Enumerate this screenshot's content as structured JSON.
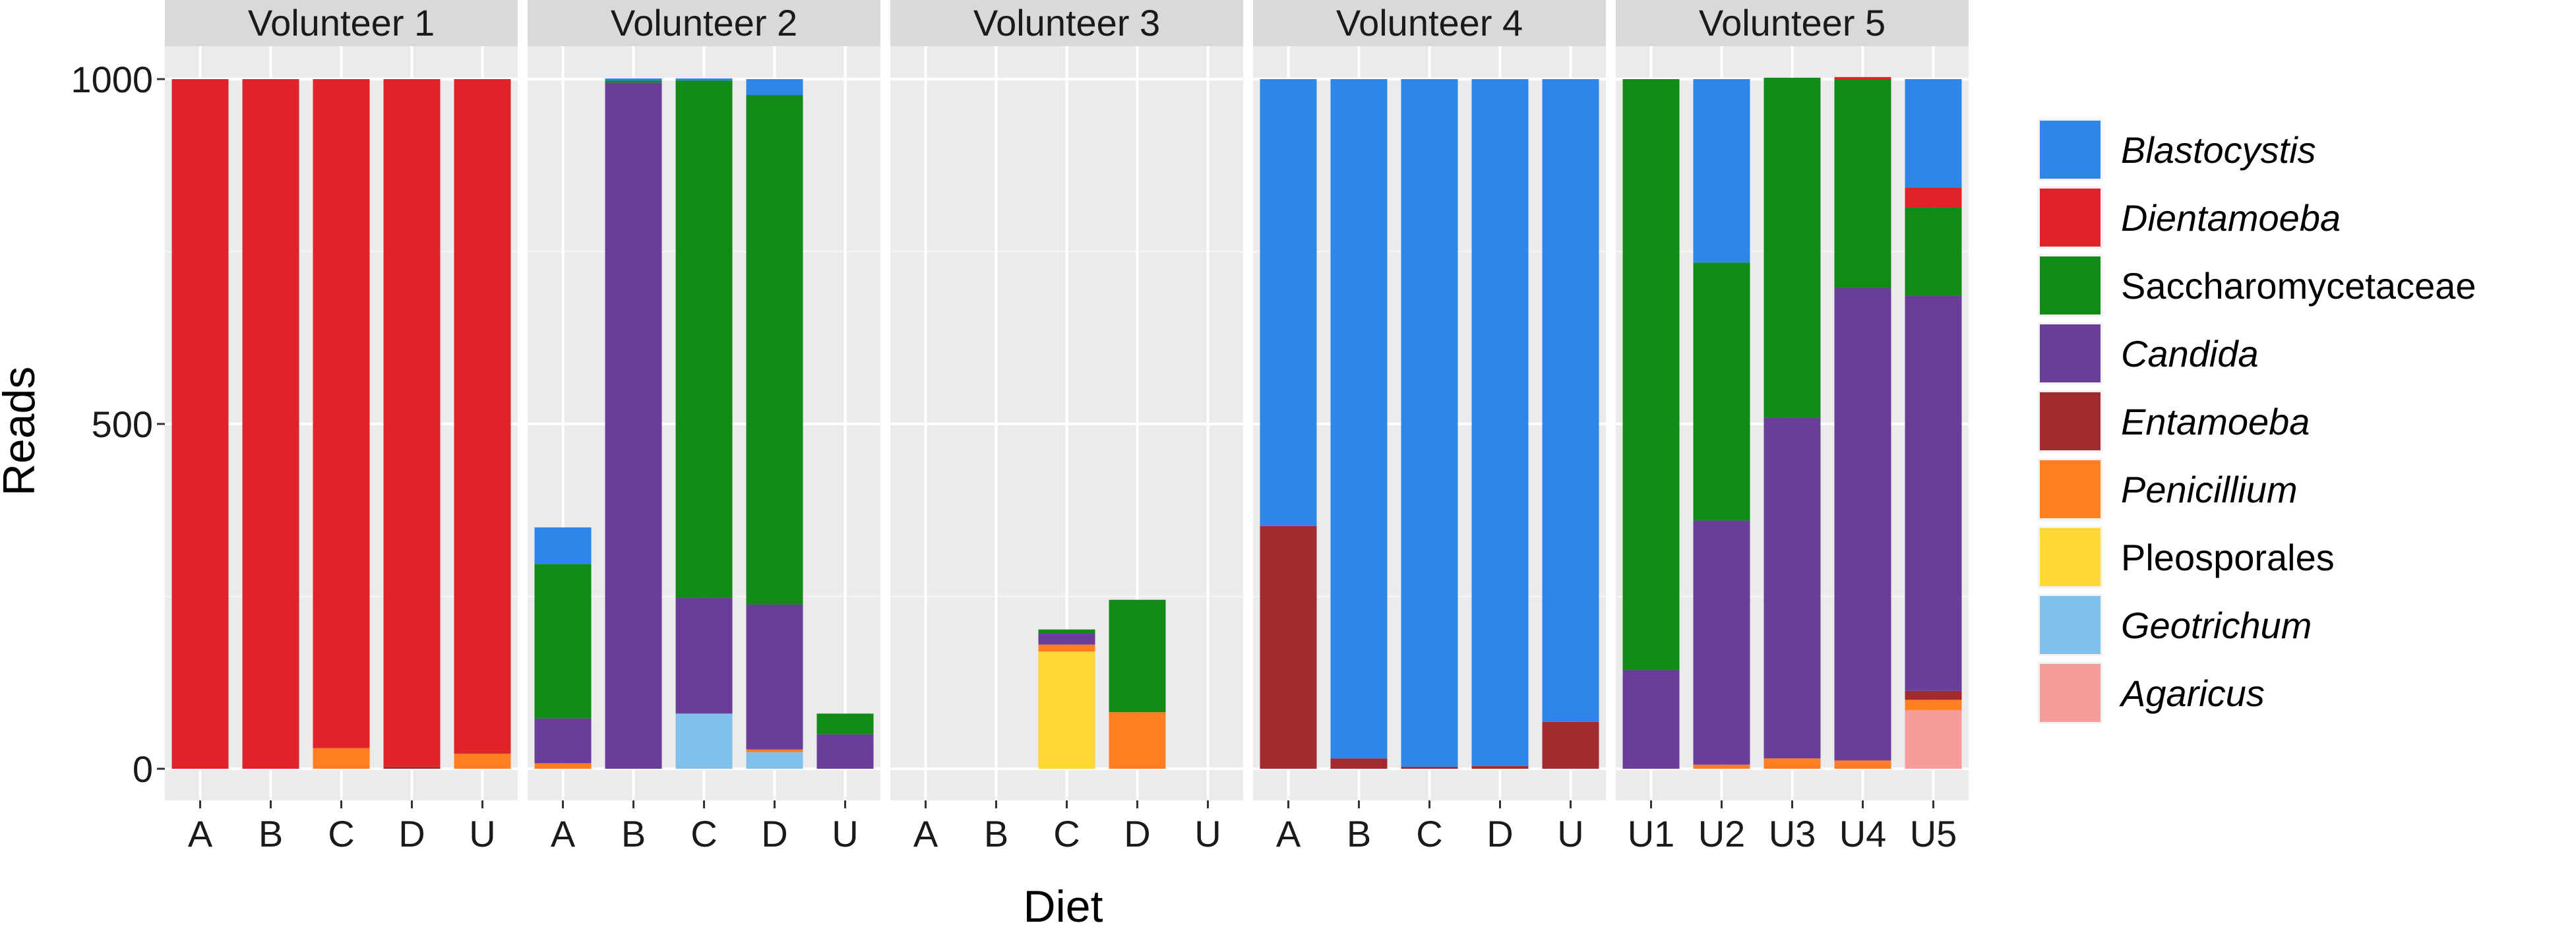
{
  "chart_data": {
    "type": "bar",
    "stacked": true,
    "facet_by": "volunteer",
    "xlabel": "Diet",
    "ylabel": "Reads",
    "ylim": [
      0,
      1050
    ],
    "yticks": [
      0,
      500,
      1000
    ],
    "grid": true,
    "legend_position": "right",
    "legend": [
      {
        "name": "Blastocystis",
        "color": "#2E86E8",
        "italic": true
      },
      {
        "name": "Dientamoeba",
        "color": "#E0232A",
        "italic": true
      },
      {
        "name": "Saccharomycetaceae",
        "color": "#128A17",
        "italic": false
      },
      {
        "name": "Candida",
        "color": "#6A3E98",
        "italic": true
      },
      {
        "name": "Entamoeba",
        "color": "#A32A2E",
        "italic": true
      },
      {
        "name": "Penicillium",
        "color": "#FF7F22",
        "italic": true
      },
      {
        "name": "Pleosporales",
        "color": "#FFD633",
        "italic": false
      },
      {
        "name": "Geotrichum",
        "color": "#80C0EC",
        "italic": true
      },
      {
        "name": "Agaricus",
        "color": "#F89B9B",
        "italic": true
      }
    ],
    "stack_order_bottom_to_top": [
      "Agaricus",
      "Geotrichum",
      "Pleosporales",
      "Penicillium",
      "Entamoeba",
      "Candida",
      "Saccharomycetaceae",
      "Dientamoeba",
      "Blastocystis"
    ],
    "panels": [
      {
        "title": "Volunteer 1",
        "categories": [
          "A",
          "B",
          "C",
          "D",
          "U"
        ],
        "values": {
          "A": {
            "Dientamoeba": 1000
          },
          "B": {
            "Dientamoeba": 1000
          },
          "C": {
            "Penicillium": 30,
            "Dientamoeba": 970
          },
          "D": {
            "Entamoeba": 3,
            "Dientamoeba": 997
          },
          "U": {
            "Penicillium": 22,
            "Dientamoeba": 978
          }
        }
      },
      {
        "title": "Volunteer 2",
        "categories": [
          "A",
          "B",
          "C",
          "D",
          "U"
        ],
        "values": {
          "A": {
            "Penicillium": 8,
            "Candida": 65,
            "Saccharomycetaceae": 224,
            "Blastocystis": 53
          },
          "B": {
            "Candida": 995,
            "Saccharomycetaceae": 3,
            "Blastocystis": 3
          },
          "C": {
            "Geotrichum": 80,
            "Candida": 168,
            "Saccharomycetaceae": 750,
            "Blastocystis": 3
          },
          "D": {
            "Geotrichum": 24,
            "Penicillium": 4,
            "Candida": 210,
            "Saccharomycetaceae": 739,
            "Blastocystis": 23
          },
          "U": {
            "Candida": 50,
            "Saccharomycetaceae": 30
          }
        }
      },
      {
        "title": "Volunteer 3",
        "categories": [
          "A",
          "B",
          "C",
          "D",
          "U"
        ],
        "values": {
          "A": {},
          "B": {},
          "C": {
            "Pleosporales": 170,
            "Penicillium": 10,
            "Candida": 16,
            "Saccharomycetaceae": 6
          },
          "D": {
            "Penicillium": 82,
            "Saccharomycetaceae": 163
          },
          "U": {}
        }
      },
      {
        "title": "Volunteer 4",
        "categories": [
          "A",
          "B",
          "C",
          "D",
          "U"
        ],
        "values": {
          "A": {
            "Entamoeba": 352,
            "Blastocystis": 648
          },
          "B": {
            "Entamoeba": 15,
            "Blastocystis": 985
          },
          "C": {
            "Entamoeba": 3,
            "Blastocystis": 997
          },
          "D": {
            "Entamoeba": 4,
            "Blastocystis": 996
          },
          "U": {
            "Entamoeba": 68,
            "Blastocystis": 932
          }
        }
      },
      {
        "title": "Volunteer 5",
        "categories": [
          "U1",
          "U2",
          "U3",
          "U4",
          "U5"
        ],
        "values": {
          "U1": {
            "Candida": 143,
            "Saccharomycetaceae": 857
          },
          "U2": {
            "Penicillium": 6,
            "Candida": 354,
            "Saccharomycetaceae": 374,
            "Blastocystis": 266
          },
          "U3": {
            "Penicillium": 15,
            "Candida": 494,
            "Saccharomycetaceae": 493
          },
          "U4": {
            "Penicillium": 12,
            "Candida": 685,
            "Saccharomycetaceae": 303,
            "Dientamoeba": 3
          },
          "U5": {
            "Agaricus": 85,
            "Penicillium": 15,
            "Entamoeba": 13,
            "Candida": 573,
            "Saccharomycetaceae": 128,
            "Dientamoeba": 29,
            "Blastocystis": 157
          }
        }
      }
    ]
  }
}
